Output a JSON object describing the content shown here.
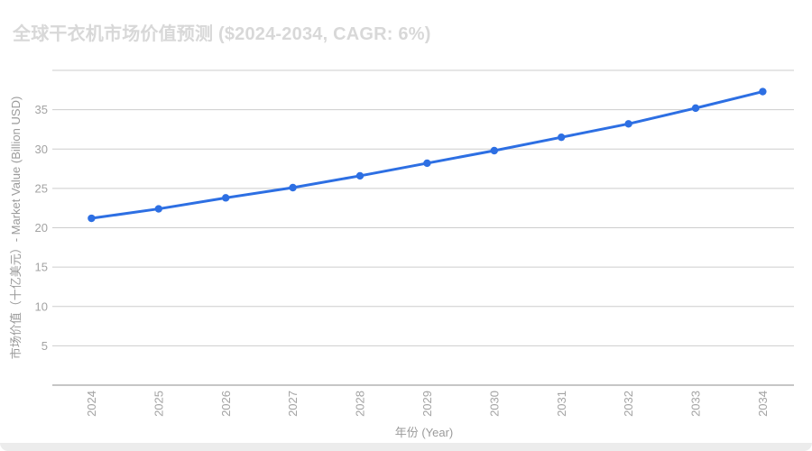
{
  "title": "全球干衣机市场价值预测 ($2024-2034, CAGR: 6%)",
  "chart_data": {
    "type": "line",
    "title": "全球干衣机市场价值预测 ($2024-2034, CAGR: 6%)",
    "categories": [
      "2024",
      "2025",
      "2026",
      "2027",
      "2028",
      "2029",
      "2030",
      "2031",
      "2032",
      "2033",
      "2034"
    ],
    "values": [
      21.2,
      22.4,
      23.8,
      25.1,
      26.6,
      28.2,
      29.8,
      31.5,
      33.2,
      35.2,
      37.3
    ],
    "xlabel": "年份 (Year)",
    "ylabel": "市场价值（十亿美元）- Market Value (Billion USD)",
    "ylim": [
      0,
      40
    ],
    "y_ticks": [
      5,
      10,
      15,
      20,
      25,
      30,
      35
    ],
    "grid": "horizontal",
    "legend": "none",
    "x_tick_rotation": -90,
    "line_color": "#2d6fe3",
    "point_color": "#2d6fe3"
  }
}
